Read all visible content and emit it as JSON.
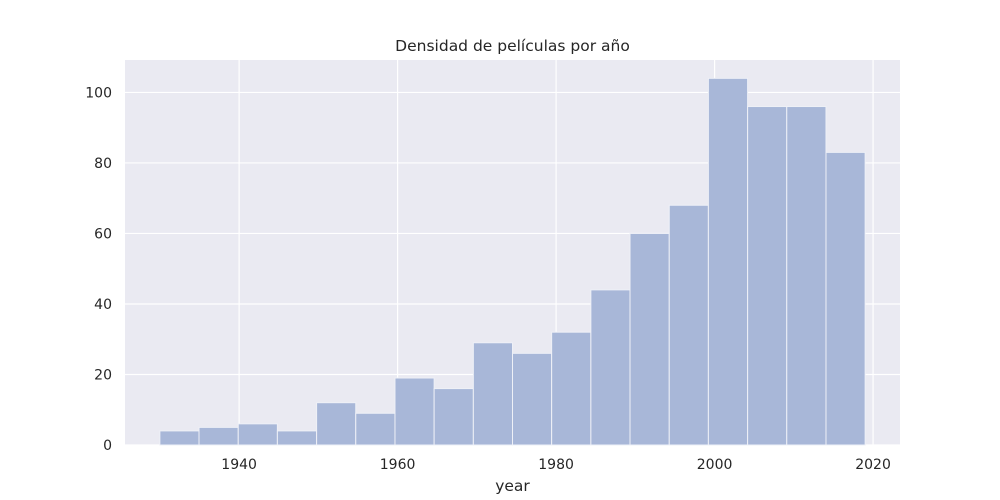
{
  "chart_data": {
    "type": "bar",
    "subtype": "histogram",
    "title": "Densidad de películas por año",
    "xlabel": "year",
    "ylabel": "",
    "bin_edges": [
      1930.0,
      1934.94,
      1939.89,
      1944.83,
      1949.78,
      1954.72,
      1959.67,
      1964.61,
      1969.56,
      1974.5,
      1979.44,
      1984.39,
      1989.33,
      1994.28,
      1999.22,
      2004.17,
      2009.11,
      2014.06,
      2019.0
    ],
    "values": [
      4,
      5,
      6,
      4,
      12,
      9,
      19,
      16,
      29,
      26,
      32,
      44,
      60,
      68,
      104,
      96,
      96,
      83
    ],
    "xlim": [
      1925.6,
      2023.4
    ],
    "ylim": [
      0,
      109.2
    ],
    "x_ticks": [
      1940,
      1960,
      1980,
      2000,
      2020
    ],
    "y_ticks": [
      0,
      20,
      40,
      60,
      80,
      100
    ],
    "grid": true,
    "legend": "none",
    "colors": {
      "background": "#eaeaf2",
      "grid": "#ffffff",
      "bar_fill": "#a8b7d8",
      "bar_edge": "#eef0f7",
      "text": "#262626"
    }
  }
}
